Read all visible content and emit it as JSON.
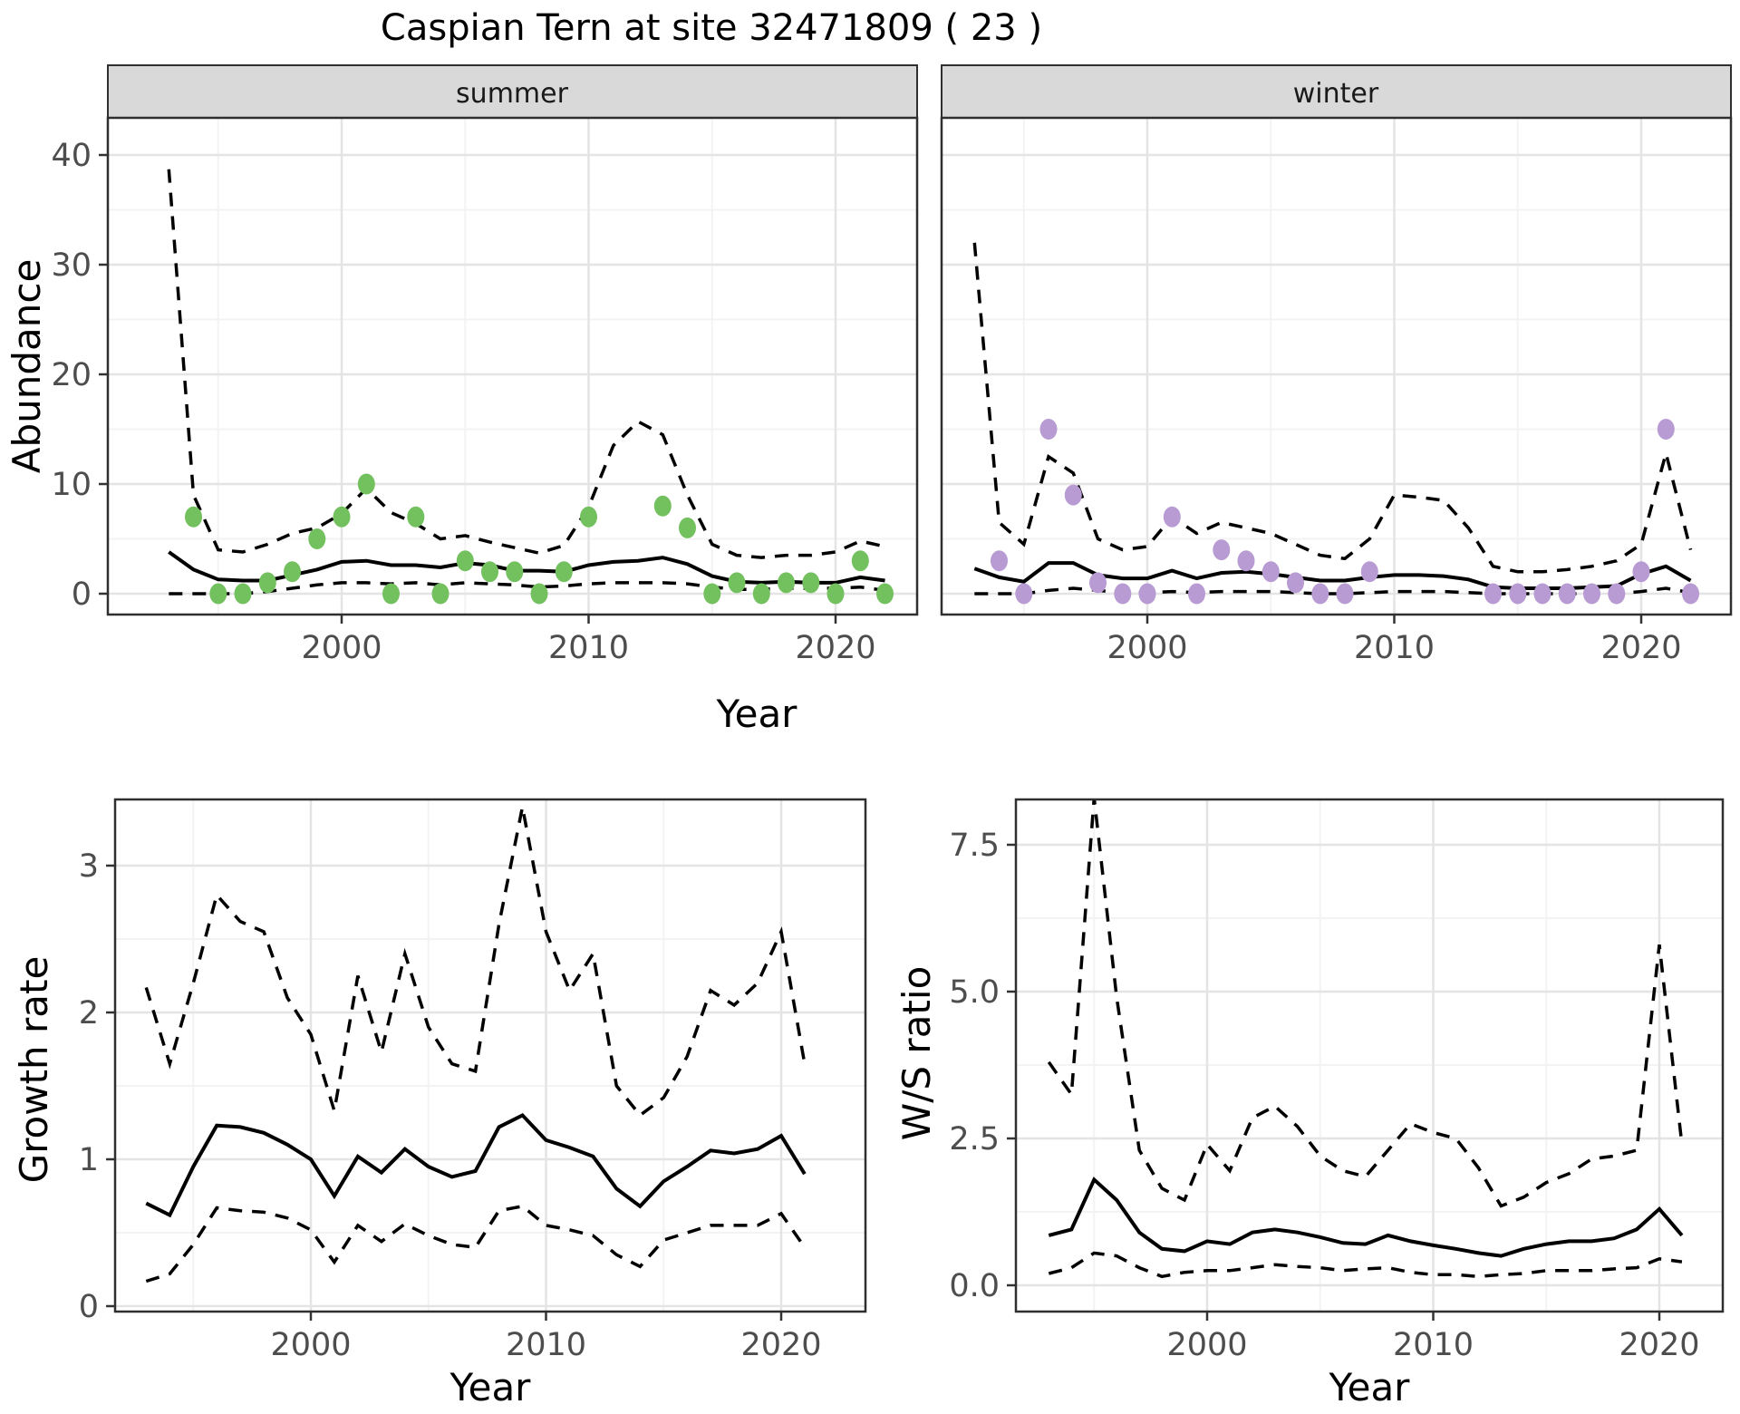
{
  "title": "Caspian Tern at site 32471809 ( 23 )",
  "facets": [
    {
      "label": "summer"
    },
    {
      "label": "winter"
    }
  ],
  "top_row": {
    "xlabel": "Year",
    "ylabel": "Abundance"
  },
  "bottom_left": {
    "xlabel": "Year",
    "ylabel": "Growth rate"
  },
  "bottom_right": {
    "xlabel": "Year",
    "ylabel": "W/S ratio"
  },
  "colors": {
    "summer_point": "#73C05F",
    "winter_point": "#B89BD3",
    "line": "#000000",
    "grid_major": "#E4E4E4",
    "grid_minor": "#F3F3F3",
    "panel_border": "#2F2F2F",
    "tick": "#333333",
    "tick_text": "#4D4D4D",
    "strip_bg": "#D9D9D9"
  },
  "chart_data": [
    {
      "id": "summer",
      "type": "line",
      "facet": "summer",
      "title": "Abundance, summer facet: model median with dashed credible interval and observed counts (points)",
      "xlabel": "Year",
      "ylabel": "Abundance",
      "ylim": [
        0,
        40
      ],
      "xlim": [
        1991,
        2023
      ],
      "x_ticks": {
        "values": [
          2000,
          2010,
          2020
        ],
        "labels": [
          "2000",
          "2010",
          "2020"
        ]
      },
      "x_minor": [
        1995,
        2005,
        2015
      ],
      "y_ticks": {
        "values": [
          0,
          10,
          20,
          30,
          40
        ],
        "labels": [
          "0",
          "10",
          "20",
          "30",
          "40"
        ]
      },
      "y_minor": [
        5,
        15,
        25,
        35
      ],
      "x": [
        1993,
        1994,
        1995,
        1996,
        1997,
        1998,
        1999,
        2000,
        2001,
        2002,
        2003,
        2004,
        2005,
        2006,
        2007,
        2008,
        2009,
        2010,
        2011,
        2012,
        2013,
        2014,
        2015,
        2016,
        2017,
        2018,
        2019,
        2020,
        2021,
        2022
      ],
      "series": [
        {
          "name": "median",
          "style": "solid",
          "values": [
            3.8,
            2.2,
            1.3,
            1.2,
            1.2,
            1.7,
            2.2,
            2.9,
            3.0,
            2.6,
            2.6,
            2.4,
            2.8,
            2.6,
            2.1,
            2.1,
            2.0,
            2.6,
            2.9,
            3.0,
            3.3,
            2.7,
            1.6,
            1.1,
            1.0,
            1.1,
            1.0,
            1.0,
            1.5,
            1.2
          ]
        },
        {
          "name": "upper_ci",
          "style": "dashed",
          "values": [
            38.7,
            9.0,
            4.0,
            3.8,
            4.5,
            5.5,
            6.0,
            7.3,
            9.6,
            7.4,
            6.4,
            5.0,
            5.3,
            4.7,
            4.2,
            3.7,
            4.4,
            7.9,
            13.5,
            15.7,
            14.5,
            9.0,
            4.5,
            3.5,
            3.3,
            3.5,
            3.5,
            3.8,
            4.8,
            4.3
          ]
        },
        {
          "name": "lower_ci",
          "style": "dashed",
          "values": [
            0,
            0,
            0,
            0,
            0.2,
            0.5,
            0.8,
            1.0,
            1.0,
            0.9,
            1.0,
            0.8,
            1.0,
            0.9,
            0.8,
            0.6,
            0.7,
            0.9,
            1.0,
            1.0,
            1.0,
            0.9,
            0.6,
            0.4,
            0.4,
            0.5,
            0.5,
            0.5,
            0.6,
            0.3
          ]
        }
      ],
      "points": {
        "color_key": "summer_point",
        "x": [
          1994,
          1995,
          1996,
          1997,
          1998,
          1999,
          2000,
          2001,
          2002,
          2003,
          2004,
          2005,
          2006,
          2007,
          2008,
          2009,
          2010,
          2013,
          2014,
          2015,
          2016,
          2017,
          2018,
          2019,
          2020,
          2021,
          2022
        ],
        "y": [
          7,
          0,
          0,
          1,
          2,
          5,
          7,
          10,
          0,
          7,
          0,
          3,
          2,
          2,
          0,
          2,
          7,
          8,
          6,
          0,
          1,
          0,
          1,
          1,
          0,
          3,
          0
        ]
      }
    },
    {
      "id": "winter",
      "type": "line",
      "facet": "winter",
      "title": "Abundance, winter facet: model median with dashed credible interval and observed counts (points)",
      "xlabel": "Year",
      "ylabel": "Abundance",
      "ylim": [
        0,
        40
      ],
      "xlim": [
        1991,
        2023
      ],
      "x_ticks": {
        "values": [
          2000,
          2010,
          2020
        ],
        "labels": [
          "2000",
          "2010",
          "2020"
        ]
      },
      "x_minor": [
        1995,
        2005,
        2015
      ],
      "y_ticks": null,
      "y_minor": [
        5,
        15,
        25,
        35
      ],
      "y_major_grid": [
        0,
        10,
        20,
        30,
        40
      ],
      "x": [
        1993,
        1994,
        1995,
        1996,
        1997,
        1998,
        1999,
        2000,
        2001,
        2002,
        2003,
        2004,
        2005,
        2006,
        2007,
        2008,
        2009,
        2010,
        2011,
        2012,
        2013,
        2014,
        2015,
        2016,
        2017,
        2018,
        2019,
        2020,
        2021,
        2022
      ],
      "series": [
        {
          "name": "median",
          "style": "solid",
          "values": [
            2.3,
            1.5,
            1.1,
            2.8,
            2.8,
            1.7,
            1.4,
            1.4,
            2.1,
            1.4,
            1.9,
            2.0,
            1.8,
            1.5,
            1.2,
            1.2,
            1.5,
            1.7,
            1.7,
            1.6,
            1.3,
            0.6,
            0.5,
            0.5,
            0.5,
            0.6,
            0.7,
            1.8,
            2.5,
            1.2
          ]
        },
        {
          "name": "upper_ci",
          "style": "dashed",
          "values": [
            32,
            6.5,
            4.5,
            12.5,
            11.0,
            5.0,
            4.0,
            4.3,
            7.0,
            5.5,
            6.5,
            6.0,
            5.5,
            4.5,
            3.5,
            3.2,
            5.0,
            9.0,
            8.8,
            8.5,
            6.0,
            2.5,
            2.0,
            2.0,
            2.2,
            2.5,
            3.0,
            4.5,
            12.8,
            4.0
          ]
        },
        {
          "name": "lower_ci",
          "style": "dashed",
          "values": [
            0,
            0,
            0,
            0.3,
            0.5,
            0.3,
            0.1,
            0.1,
            0.2,
            0.1,
            0.2,
            0.2,
            0.2,
            0.1,
            0,
            0,
            0.1,
            0.2,
            0.2,
            0.2,
            0.1,
            0,
            0,
            0,
            0,
            0,
            0,
            0.2,
            0.5,
            0.1
          ]
        }
      ],
      "points": {
        "color_key": "winter_point",
        "x": [
          1994,
          1995,
          1996,
          1997,
          1998,
          1999,
          2000,
          2001,
          2002,
          2003,
          2004,
          2005,
          2006,
          2007,
          2008,
          2009,
          2014,
          2015,
          2016,
          2017,
          2018,
          2019,
          2020,
          2021,
          2022
        ],
        "y": [
          3,
          0,
          15,
          9,
          1,
          0,
          0,
          7,
          0,
          4,
          3,
          2,
          1,
          0,
          0,
          2,
          0,
          0,
          0,
          0,
          0,
          0,
          2,
          15,
          0
        ]
      }
    },
    {
      "id": "growth",
      "type": "line",
      "title": "Growth rate: median with dashed credible interval",
      "xlabel": "Year",
      "ylabel": "Growth rate",
      "ylim": [
        0,
        3.45
      ],
      "xlim": [
        1991.7,
        2023.5
      ],
      "x_ticks": {
        "values": [
          2000,
          2010,
          2020
        ],
        "labels": [
          "2000",
          "2010",
          "2020"
        ]
      },
      "x_minor": [
        1995,
        2005,
        2015
      ],
      "y_ticks": {
        "values": [
          0,
          1,
          2,
          3
        ],
        "labels": [
          "0",
          "1",
          "2",
          "3"
        ]
      },
      "y_minor": [
        0.5,
        1.5,
        2.5
      ],
      "x": [
        1993,
        1994,
        1995,
        1996,
        1997,
        1998,
        1999,
        2000,
        2001,
        2002,
        2003,
        2004,
        2005,
        2006,
        2007,
        2008,
        2009,
        2010,
        2011,
        2012,
        2013,
        2014,
        2015,
        2016,
        2017,
        2018,
        2019,
        2020,
        2021
      ],
      "series": [
        {
          "name": "median",
          "style": "solid",
          "values": [
            0.7,
            0.62,
            0.95,
            1.23,
            1.22,
            1.18,
            1.1,
            1.0,
            0.75,
            1.02,
            0.91,
            1.07,
            0.95,
            0.88,
            0.92,
            1.22,
            1.3,
            1.13,
            1.08,
            1.02,
            0.8,
            0.68,
            0.85,
            0.95,
            1.06,
            1.04,
            1.07,
            1.16,
            0.9
          ]
        },
        {
          "name": "upper_ci",
          "style": "dashed",
          "values": [
            2.17,
            1.65,
            2.2,
            2.8,
            2.62,
            2.55,
            2.1,
            1.85,
            1.33,
            2.25,
            1.73,
            2.4,
            1.9,
            1.65,
            1.6,
            2.6,
            3.4,
            2.55,
            2.15,
            2.4,
            1.5,
            1.3,
            1.42,
            1.7,
            2.15,
            2.05,
            2.2,
            2.55,
            1.65
          ]
        },
        {
          "name": "lower_ci",
          "style": "dashed",
          "values": [
            0.17,
            0.22,
            0.42,
            0.67,
            0.65,
            0.64,
            0.6,
            0.52,
            0.3,
            0.55,
            0.44,
            0.56,
            0.48,
            0.42,
            0.4,
            0.65,
            0.68,
            0.55,
            0.52,
            0.48,
            0.35,
            0.27,
            0.45,
            0.5,
            0.55,
            0.55,
            0.55,
            0.63,
            0.4
          ]
        }
      ],
      "points": null
    },
    {
      "id": "ws",
      "type": "line",
      "title": "Winter/Summer ratio: median with dashed credible interval",
      "xlabel": "Year",
      "ylabel": "W/S ratio",
      "ylim": [
        0,
        8.3
      ],
      "xlim": [
        1991.7,
        2023.8
      ],
      "x_ticks": {
        "values": [
          2000,
          2010,
          2020
        ],
        "labels": [
          "2000",
          "2010",
          "2020"
        ]
      },
      "x_minor": [
        1995,
        2005,
        2015
      ],
      "y_ticks": {
        "values": [
          0.0,
          2.5,
          5.0,
          7.5
        ],
        "labels": [
          "0.0",
          "2.5",
          "5.0",
          "7.5"
        ]
      },
      "y_minor": [
        1.25,
        3.75,
        6.25
      ],
      "x": [
        1993,
        1994,
        1995,
        1996,
        1997,
        1998,
        1999,
        2000,
        2001,
        2002,
        2003,
        2004,
        2005,
        2006,
        2007,
        2008,
        2009,
        2010,
        2011,
        2012,
        2013,
        2014,
        2015,
        2016,
        2017,
        2018,
        2019,
        2020,
        2021
      ],
      "series": [
        {
          "name": "median",
          "style": "solid",
          "values": [
            0.85,
            0.95,
            1.8,
            1.45,
            0.9,
            0.62,
            0.58,
            0.75,
            0.7,
            0.9,
            0.95,
            0.9,
            0.82,
            0.72,
            0.7,
            0.85,
            0.75,
            0.68,
            0.62,
            0.55,
            0.5,
            0.62,
            0.7,
            0.75,
            0.75,
            0.8,
            0.95,
            1.3,
            0.85
          ]
        },
        {
          "name": "upper_ci",
          "style": "dashed",
          "values": [
            3.8,
            3.25,
            8.3,
            4.9,
            2.3,
            1.65,
            1.45,
            2.4,
            1.95,
            2.85,
            3.05,
            2.7,
            2.2,
            1.95,
            1.85,
            2.3,
            2.75,
            2.6,
            2.5,
            2.0,
            1.35,
            1.5,
            1.75,
            1.9,
            2.15,
            2.2,
            2.3,
            5.8,
            2.4
          ]
        },
        {
          "name": "lower_ci",
          "style": "dashed",
          "values": [
            0.2,
            0.3,
            0.55,
            0.5,
            0.3,
            0.15,
            0.22,
            0.25,
            0.25,
            0.3,
            0.35,
            0.32,
            0.3,
            0.25,
            0.28,
            0.3,
            0.22,
            0.18,
            0.18,
            0.15,
            0.18,
            0.2,
            0.25,
            0.25,
            0.25,
            0.28,
            0.3,
            0.45,
            0.4
          ]
        }
      ],
      "points": null
    }
  ]
}
